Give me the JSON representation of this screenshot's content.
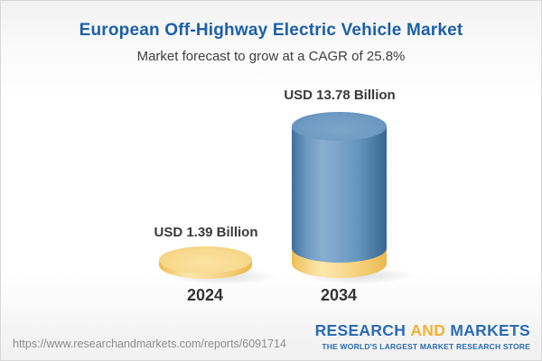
{
  "header": {
    "title": "European Off-Highway Electric Vehicle Market",
    "subtitle": "Market forecast to grow at a CAGR of 25.8%"
  },
  "chart_data": {
    "type": "bar",
    "title": "European Off-Highway Electric Vehicle Market",
    "subtitle": "Market forecast to grow at a CAGR of 25.8%",
    "cagr_percent": 25.8,
    "unit": "USD Billion",
    "categories": [
      "2024",
      "2034"
    ],
    "values": [
      1.39,
      13.78
    ],
    "value_labels": [
      "USD 1.39 Billion",
      "USD 13.78 Billion"
    ],
    "bar_style": "3d-cylinder",
    "legend": "none",
    "grid": false,
    "colors": {
      "bar_2024": "#f5d386",
      "bar_2034": "#6e9ac2",
      "bar_2034_base_band": "#f5d386",
      "title_text": "#1d60a8",
      "label_text": "#393939"
    }
  },
  "footer": {
    "url": "https://www.researchandmarkets.com/reports/6091714",
    "logo": {
      "word1": "RESEARCH",
      "word2": "AND",
      "word3": "MARKETS",
      "tagline": "THE WORLD'S LARGEST MARKET RESEARCH STORE",
      "blue": "#2a6cb4",
      "gold": "#f0b236"
    }
  }
}
